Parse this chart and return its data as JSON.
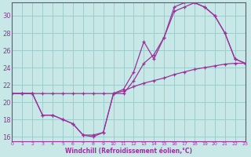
{
  "xlabel": "Windchill (Refroidissement éolien,°C)",
  "background_color": "#c8e8e8",
  "grid_color": "#a0cccc",
  "line_color": "#993399",
  "xlim": [
    0,
    23
  ],
  "ylim": [
    15.5,
    31.5
  ],
  "xtick_vals": [
    0,
    1,
    2,
    3,
    4,
    5,
    6,
    7,
    8,
    9,
    10,
    11,
    12,
    13,
    14,
    15,
    16,
    17,
    18,
    19,
    20,
    21,
    22,
    23
  ],
  "ytick_vals": [
    16,
    18,
    20,
    22,
    24,
    26,
    28,
    30
  ],
  "series": [
    {
      "x": [
        0,
        1,
        2,
        3,
        4,
        5,
        6,
        7,
        8,
        9,
        10,
        11,
        12,
        13,
        14,
        15,
        16,
        17,
        18,
        19,
        20,
        21,
        22,
        23
      ],
      "y": [
        21.0,
        21.0,
        21.0,
        18.5,
        18.5,
        18.0,
        17.5,
        16.2,
        16.0,
        16.5,
        21.0,
        21.5,
        23.5,
        27.0,
        25.0,
        27.5,
        31.0,
        31.5,
        31.5,
        31.0,
        30.0,
        28.0,
        25.0,
        24.5
      ]
    },
    {
      "x": [
        0,
        1,
        2,
        3,
        4,
        5,
        6,
        7,
        8,
        9,
        10,
        11,
        12,
        13,
        14,
        15,
        16,
        17,
        18,
        19,
        20,
        21,
        22,
        23
      ],
      "y": [
        21.0,
        21.0,
        21.0,
        18.5,
        18.5,
        18.0,
        17.5,
        16.2,
        16.2,
        16.5,
        21.0,
        21.0,
        22.5,
        24.5,
        25.5,
        27.5,
        30.5,
        31.0,
        31.5,
        31.0,
        30.0,
        28.0,
        25.0,
        24.5
      ]
    },
    {
      "x": [
        0,
        1,
        2,
        3,
        4,
        5,
        6,
        7,
        8,
        9,
        10,
        11,
        12,
        13,
        14,
        15,
        16,
        17,
        18,
        19,
        20,
        21,
        22,
        23
      ],
      "y": [
        21.0,
        21.0,
        21.0,
        21.0,
        21.0,
        21.0,
        21.0,
        21.0,
        21.0,
        21.0,
        21.0,
        21.3,
        21.8,
        22.2,
        22.5,
        22.8,
        23.2,
        23.5,
        23.8,
        24.0,
        24.2,
        24.4,
        24.5,
        24.5
      ]
    }
  ]
}
